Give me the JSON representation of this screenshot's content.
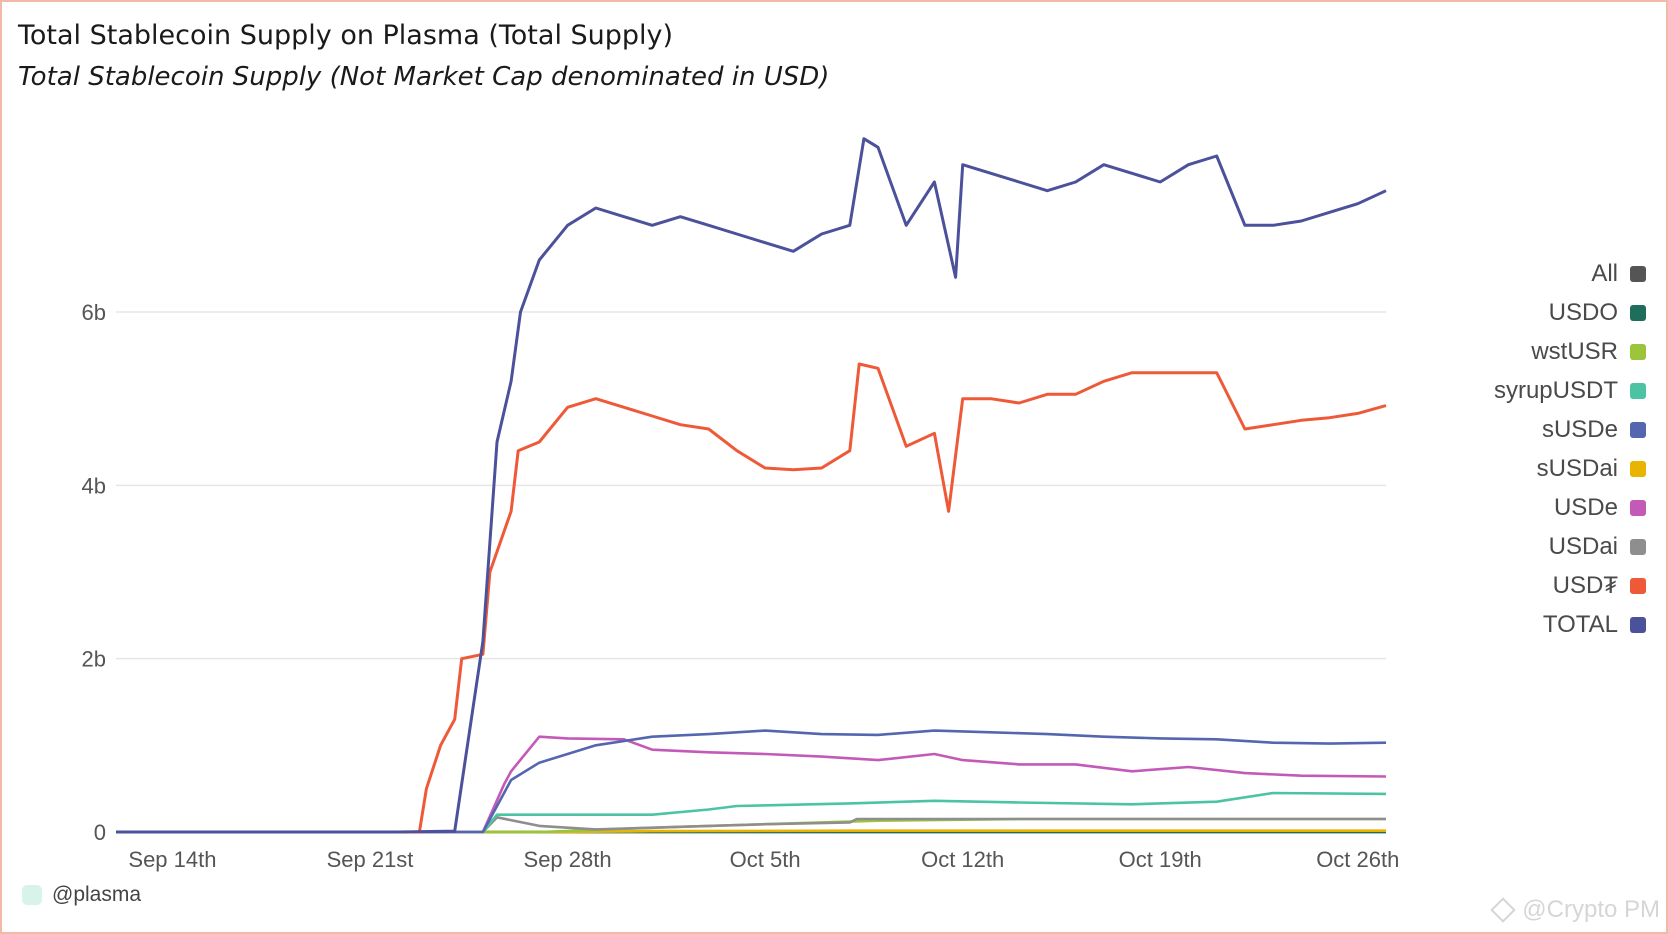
{
  "header": {
    "title": "Total Stablecoin Supply on Plasma (Total Supply)",
    "subtitle": "Total Stablecoin Supply (Not Market Cap denominated in USD)"
  },
  "footer": {
    "handle": "@plasma",
    "watermark": "@Crypto PM"
  },
  "legend": [
    {
      "label": "All",
      "color": "#555555"
    },
    {
      "label": "USDO",
      "color": "#1f6e5c"
    },
    {
      "label": "wstUSR",
      "color": "#9cc43b"
    },
    {
      "label": "syrupUSDT",
      "color": "#4cc4a4"
    },
    {
      "label": "sUSDe",
      "color": "#5566b0"
    },
    {
      "label": "sUSDai",
      "color": "#e8b400"
    },
    {
      "label": "USDe",
      "color": "#c45ab8"
    },
    {
      "label": "USDai",
      "color": "#8e8e8e"
    },
    {
      "label": "USD₮",
      "color": "#ee5a38"
    },
    {
      "label": "TOTAL",
      "color": "#4b519a"
    }
  ],
  "chart_data": {
    "type": "line",
    "title": "Total Stablecoin Supply on Plasma (Total Supply)",
    "subtitle": "Total Stablecoin Supply (Not Market Cap denominated in USD)",
    "xlabel": "",
    "ylabel": "",
    "x_range": [
      "2025-09-12",
      "2025-10-27"
    ],
    "ylim": [
      0,
      8100000000
    ],
    "y_ticks": [
      {
        "value": 0,
        "label": "0"
      },
      {
        "value": 2000000000,
        "label": "2b"
      },
      {
        "value": 4000000000,
        "label": "4b"
      },
      {
        "value": 6000000000,
        "label": "6b"
      }
    ],
    "x_ticks": [
      {
        "date": "2025-09-14",
        "label": "Sep 14th"
      },
      {
        "date": "2025-09-21",
        "label": "Sep 21st"
      },
      {
        "date": "2025-09-28",
        "label": "Sep 28th"
      },
      {
        "date": "2025-10-05",
        "label": "Oct 5th"
      },
      {
        "date": "2025-10-12",
        "label": "Oct 12th"
      },
      {
        "date": "2025-10-19",
        "label": "Oct 19th"
      },
      {
        "date": "2025-10-26",
        "label": "Oct 26th"
      }
    ],
    "grid": true,
    "legend_position": "right",
    "series": [
      {
        "name": "TOTAL",
        "color": "#4b519a",
        "points": [
          [
            "2025-09-12",
            0
          ],
          [
            "2025-09-22",
            0
          ],
          [
            "2025-09-24",
            10000000
          ],
          [
            "2025-09-25",
            2200000000
          ],
          [
            "2025-09-25T12:00",
            4500000000
          ],
          [
            "2025-09-26",
            5200000000
          ],
          [
            "2025-09-26T08:00",
            6000000000
          ],
          [
            "2025-09-27",
            6600000000
          ],
          [
            "2025-09-28",
            7000000000
          ],
          [
            "2025-09-29",
            7200000000
          ],
          [
            "2025-09-30",
            7100000000
          ],
          [
            "2025-10-01",
            7000000000
          ],
          [
            "2025-10-02",
            7100000000
          ],
          [
            "2025-10-03",
            7000000000
          ],
          [
            "2025-10-04",
            6900000000
          ],
          [
            "2025-10-05",
            6800000000
          ],
          [
            "2025-10-06",
            6700000000
          ],
          [
            "2025-10-07",
            6900000000
          ],
          [
            "2025-10-08",
            7000000000
          ],
          [
            "2025-10-08T12:00",
            8000000000
          ],
          [
            "2025-10-09",
            7900000000
          ],
          [
            "2025-10-10",
            7000000000
          ],
          [
            "2025-10-11",
            7500000000
          ],
          [
            "2025-10-11T18:00",
            6400000000
          ],
          [
            "2025-10-12",
            7700000000
          ],
          [
            "2025-10-13",
            7600000000
          ],
          [
            "2025-10-14",
            7500000000
          ],
          [
            "2025-10-15",
            7400000000
          ],
          [
            "2025-10-16",
            7500000000
          ],
          [
            "2025-10-17",
            7700000000
          ],
          [
            "2025-10-18",
            7600000000
          ],
          [
            "2025-10-19",
            7500000000
          ],
          [
            "2025-10-20",
            7700000000
          ],
          [
            "2025-10-21",
            7800000000
          ],
          [
            "2025-10-22",
            7000000000
          ],
          [
            "2025-10-23",
            7000000000
          ],
          [
            "2025-10-24",
            7050000000
          ],
          [
            "2025-10-25",
            7150000000
          ],
          [
            "2025-10-26",
            7250000000
          ],
          [
            "2025-10-27",
            7400000000
          ]
        ]
      },
      {
        "name": "USD₮",
        "color": "#ee5a38",
        "points": [
          [
            "2025-09-12",
            0
          ],
          [
            "2025-09-22T18:00",
            0
          ],
          [
            "2025-09-23",
            500000000
          ],
          [
            "2025-09-23T12:00",
            1000000000
          ],
          [
            "2025-09-24",
            1300000000
          ],
          [
            "2025-09-24T06:00",
            2000000000
          ],
          [
            "2025-09-25",
            2050000000
          ],
          [
            "2025-09-25T06:00",
            3000000000
          ],
          [
            "2025-09-26",
            3700000000
          ],
          [
            "2025-09-26T06:00",
            4400000000
          ],
          [
            "2025-09-27",
            4500000000
          ],
          [
            "2025-09-28",
            4900000000
          ],
          [
            "2025-09-29",
            5000000000
          ],
          [
            "2025-09-30",
            4900000000
          ],
          [
            "2025-10-01",
            4800000000
          ],
          [
            "2025-10-02",
            4700000000
          ],
          [
            "2025-10-03",
            4650000000
          ],
          [
            "2025-10-04",
            4400000000
          ],
          [
            "2025-10-05",
            4200000000
          ],
          [
            "2025-10-06",
            4180000000
          ],
          [
            "2025-10-07",
            4200000000
          ],
          [
            "2025-10-08",
            4400000000
          ],
          [
            "2025-10-08T08:00",
            5400000000
          ],
          [
            "2025-10-09",
            5350000000
          ],
          [
            "2025-10-10",
            4450000000
          ],
          [
            "2025-10-11",
            4600000000
          ],
          [
            "2025-10-11T12:00",
            3700000000
          ],
          [
            "2025-10-12",
            5000000000
          ],
          [
            "2025-10-13",
            5000000000
          ],
          [
            "2025-10-14",
            4950000000
          ],
          [
            "2025-10-15",
            5050000000
          ],
          [
            "2025-10-16",
            5050000000
          ],
          [
            "2025-10-17",
            5200000000
          ],
          [
            "2025-10-18",
            5300000000
          ],
          [
            "2025-10-19",
            5300000000
          ],
          [
            "2025-10-20",
            5300000000
          ],
          [
            "2025-10-21",
            5300000000
          ],
          [
            "2025-10-22",
            4650000000
          ],
          [
            "2025-10-23",
            4700000000
          ],
          [
            "2025-10-24",
            4750000000
          ],
          [
            "2025-10-25",
            4780000000
          ],
          [
            "2025-10-26",
            4830000000
          ],
          [
            "2025-10-27",
            4920000000
          ]
        ]
      },
      {
        "name": "sUSDe",
        "color": "#5566b0",
        "points": [
          [
            "2025-09-12",
            0
          ],
          [
            "2025-09-25",
            0
          ],
          [
            "2025-09-25T18:00",
            450000000
          ],
          [
            "2025-09-26",
            600000000
          ],
          [
            "2025-09-27",
            800000000
          ],
          [
            "2025-09-28",
            900000000
          ],
          [
            "2025-09-29",
            1000000000
          ],
          [
            "2025-10-01",
            1100000000
          ],
          [
            "2025-10-03",
            1130000000
          ],
          [
            "2025-10-05",
            1170000000
          ],
          [
            "2025-10-07",
            1130000000
          ],
          [
            "2025-10-09",
            1120000000
          ],
          [
            "2025-10-11",
            1170000000
          ],
          [
            "2025-10-13",
            1150000000
          ],
          [
            "2025-10-15",
            1130000000
          ],
          [
            "2025-10-17",
            1100000000
          ],
          [
            "2025-10-19",
            1080000000
          ],
          [
            "2025-10-21",
            1070000000
          ],
          [
            "2025-10-23",
            1030000000
          ],
          [
            "2025-10-25",
            1020000000
          ],
          [
            "2025-10-27",
            1030000000
          ]
        ]
      },
      {
        "name": "USDe",
        "color": "#c45ab8",
        "points": [
          [
            "2025-09-12",
            0
          ],
          [
            "2025-09-25",
            0
          ],
          [
            "2025-09-25T18:00",
            550000000
          ],
          [
            "2025-09-26",
            700000000
          ],
          [
            "2025-09-27",
            1100000000
          ],
          [
            "2025-09-28",
            1080000000
          ],
          [
            "2025-09-30",
            1070000000
          ],
          [
            "2025-10-01",
            950000000
          ],
          [
            "2025-10-03",
            920000000
          ],
          [
            "2025-10-05",
            900000000
          ],
          [
            "2025-10-07",
            870000000
          ],
          [
            "2025-10-09",
            830000000
          ],
          [
            "2025-10-11",
            900000000
          ],
          [
            "2025-10-12",
            830000000
          ],
          [
            "2025-10-14",
            780000000
          ],
          [
            "2025-10-16",
            780000000
          ],
          [
            "2025-10-18",
            700000000
          ],
          [
            "2025-10-20",
            750000000
          ],
          [
            "2025-10-22",
            680000000
          ],
          [
            "2025-10-24",
            650000000
          ],
          [
            "2025-10-27",
            640000000
          ]
        ]
      },
      {
        "name": "syrupUSDT",
        "color": "#4cc4a4",
        "points": [
          [
            "2025-09-12",
            0
          ],
          [
            "2025-09-25",
            0
          ],
          [
            "2025-09-25T12:00",
            200000000
          ],
          [
            "2025-09-26",
            200000000
          ],
          [
            "2025-10-01",
            200000000
          ],
          [
            "2025-10-03",
            260000000
          ],
          [
            "2025-10-04",
            300000000
          ],
          [
            "2025-10-08",
            330000000
          ],
          [
            "2025-10-11",
            360000000
          ],
          [
            "2025-10-14",
            340000000
          ],
          [
            "2025-10-18",
            320000000
          ],
          [
            "2025-10-21",
            350000000
          ],
          [
            "2025-10-23",
            450000000
          ],
          [
            "2025-10-27",
            440000000
          ]
        ]
      },
      {
        "name": "USDai",
        "color": "#8e8e8e",
        "points": [
          [
            "2025-09-12",
            0
          ],
          [
            "2025-09-25",
            0
          ],
          [
            "2025-09-25T12:00",
            170000000
          ],
          [
            "2025-09-27",
            70000000
          ],
          [
            "2025-09-29",
            30000000
          ],
          [
            "2025-10-02",
            60000000
          ],
          [
            "2025-10-05",
            90000000
          ],
          [
            "2025-10-08",
            110000000
          ],
          [
            "2025-10-08T06:00",
            150000000
          ],
          [
            "2025-10-12",
            150000000
          ],
          [
            "2025-10-18",
            150000000
          ],
          [
            "2025-10-27",
            150000000
          ]
        ]
      },
      {
        "name": "wstUSR",
        "color": "#9cc43b",
        "points": [
          [
            "2025-09-12",
            0
          ],
          [
            "2025-09-27",
            0
          ],
          [
            "2025-10-02",
            60000000
          ],
          [
            "2025-10-06",
            100000000
          ],
          [
            "2025-10-09",
            130000000
          ],
          [
            "2025-10-14",
            150000000
          ],
          [
            "2025-10-20",
            150000000
          ],
          [
            "2025-10-27",
            150000000
          ]
        ]
      },
      {
        "name": "sUSDai",
        "color": "#e8b400",
        "points": [
          [
            "2025-09-12",
            0
          ],
          [
            "2025-09-28",
            0
          ],
          [
            "2025-10-01",
            10000000
          ],
          [
            "2025-10-08",
            15000000
          ],
          [
            "2025-10-27",
            15000000
          ]
        ]
      },
      {
        "name": "USDO",
        "color": "#1f6e5c",
        "points": [
          [
            "2025-09-12",
            0
          ],
          [
            "2025-10-27",
            0
          ]
        ]
      },
      {
        "name": "All",
        "color": "#555555",
        "points": [
          [
            "2025-09-12",
            0
          ],
          [
            "2025-10-27",
            0
          ]
        ]
      }
    ]
  }
}
